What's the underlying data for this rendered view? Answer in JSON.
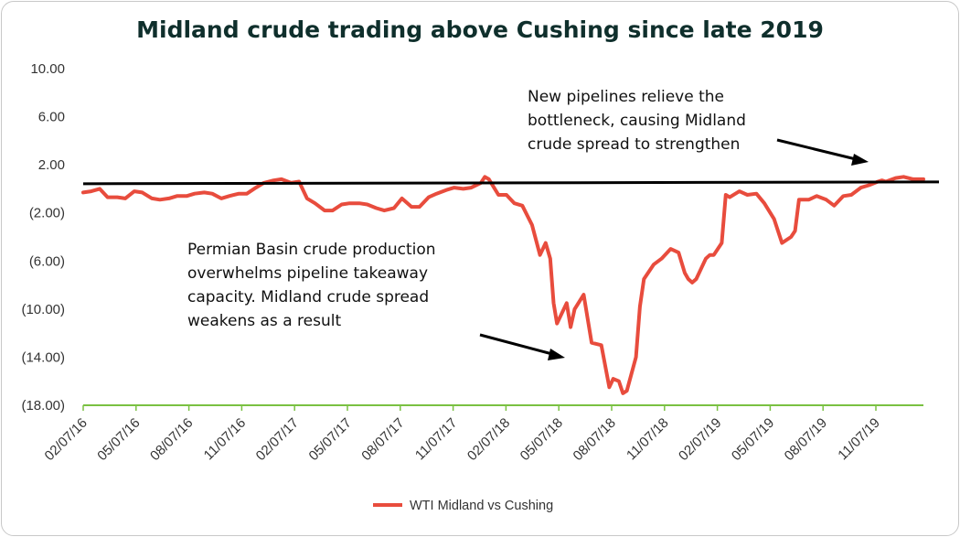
{
  "chart_data": {
    "type": "line",
    "title": "Midland crude trading above Cushing since late 2019",
    "xlabel": "",
    "ylabel": "",
    "ylim": [
      -18,
      10
    ],
    "y_ticks": [
      10,
      6,
      2,
      -2,
      -6,
      -10,
      -14,
      -18
    ],
    "y_tick_labels": [
      "10.00",
      "6.00",
      "2.00",
      "(2.00)",
      "(6.00)",
      "(10.00)",
      "(14.00)",
      "(18.00)"
    ],
    "x_tick_labels": [
      "02/07/16",
      "05/07/16",
      "08/07/16",
      "11/07/16",
      "02/07/17",
      "05/07/17",
      "08/07/17",
      "11/07/17",
      "02/07/18",
      "05/07/18",
      "08/07/18",
      "11/07/18",
      "02/07/19",
      "05/07/19",
      "08/07/19",
      "11/07/19"
    ],
    "x_range": [
      "2016-02-07",
      "2020-02-25"
    ],
    "grid": false,
    "legend_position": "bottom",
    "series": [
      {
        "name": "WTI Midland vs Cushing",
        "color": "#e84c3d",
        "points": [
          [
            "2016-02-07",
            -0.3
          ],
          [
            "2016-02-21",
            -0.2
          ],
          [
            "2016-03-07",
            0.0
          ],
          [
            "2016-03-21",
            -0.7
          ],
          [
            "2016-04-07",
            -0.7
          ],
          [
            "2016-04-21",
            -0.8
          ],
          [
            "2016-05-07",
            -0.2
          ],
          [
            "2016-05-21",
            -0.3
          ],
          [
            "2016-06-07",
            -0.8
          ],
          [
            "2016-06-21",
            -0.9
          ],
          [
            "2016-07-07",
            -0.8
          ],
          [
            "2016-07-21",
            -0.6
          ],
          [
            "2016-08-07",
            -0.6
          ],
          [
            "2016-08-21",
            -0.4
          ],
          [
            "2016-09-07",
            -0.3
          ],
          [
            "2016-09-21",
            -0.4
          ],
          [
            "2016-10-07",
            -0.8
          ],
          [
            "2016-10-21",
            -0.6
          ],
          [
            "2016-11-07",
            -0.4
          ],
          [
            "2016-11-21",
            -0.4
          ],
          [
            "2016-12-07",
            0.1
          ],
          [
            "2016-12-21",
            0.5
          ],
          [
            "2017-01-07",
            0.7
          ],
          [
            "2017-01-21",
            0.8
          ],
          [
            "2017-02-07",
            0.5
          ],
          [
            "2017-02-21",
            0.6
          ],
          [
            "2017-03-07",
            -0.8
          ],
          [
            "2017-03-21",
            -1.2
          ],
          [
            "2017-04-07",
            -1.8
          ],
          [
            "2017-04-21",
            -1.8
          ],
          [
            "2017-05-07",
            -1.3
          ],
          [
            "2017-05-21",
            -1.2
          ],
          [
            "2017-06-07",
            -1.2
          ],
          [
            "2017-06-21",
            -1.3
          ],
          [
            "2017-07-07",
            -1.6
          ],
          [
            "2017-07-21",
            -1.8
          ],
          [
            "2017-08-07",
            -1.6
          ],
          [
            "2017-08-21",
            -0.8
          ],
          [
            "2017-09-07",
            -1.5
          ],
          [
            "2017-09-21",
            -1.5
          ],
          [
            "2017-10-07",
            -0.7
          ],
          [
            "2017-10-21",
            -0.4
          ],
          [
            "2017-11-07",
            -0.1
          ],
          [
            "2017-11-21",
            0.1
          ],
          [
            "2017-12-07",
            0.0
          ],
          [
            "2017-12-21",
            0.1
          ],
          [
            "2018-01-07",
            0.5
          ],
          [
            "2018-01-14",
            1.0
          ],
          [
            "2018-01-21",
            0.8
          ],
          [
            "2018-02-07",
            -0.5
          ],
          [
            "2018-02-21",
            -0.5
          ],
          [
            "2018-03-07",
            -1.2
          ],
          [
            "2018-03-21",
            -1.4
          ],
          [
            "2018-04-07",
            -3.0
          ],
          [
            "2018-04-21",
            -5.5
          ],
          [
            "2018-05-01",
            -4.5
          ],
          [
            "2018-05-09",
            -5.8
          ],
          [
            "2018-05-15",
            -9.5
          ],
          [
            "2018-05-21",
            -11.2
          ],
          [
            "2018-06-07",
            -9.5
          ],
          [
            "2018-06-14",
            -11.5
          ],
          [
            "2018-06-21",
            -10.0
          ],
          [
            "2018-07-07",
            -8.8
          ],
          [
            "2018-07-21",
            -12.8
          ],
          [
            "2018-08-07",
            -13.0
          ],
          [
            "2018-08-21",
            -16.5
          ],
          [
            "2018-08-28",
            -15.8
          ],
          [
            "2018-09-07",
            -16.0
          ],
          [
            "2018-09-14",
            -17.0
          ],
          [
            "2018-09-21",
            -16.8
          ],
          [
            "2018-10-07",
            -14.0
          ],
          [
            "2018-10-14",
            -9.8
          ],
          [
            "2018-10-21",
            -7.5
          ],
          [
            "2018-11-07",
            -6.3
          ],
          [
            "2018-11-21",
            -5.8
          ],
          [
            "2018-12-07",
            -5.0
          ],
          [
            "2018-12-21",
            -5.3
          ],
          [
            "2019-01-01",
            -7.0
          ],
          [
            "2019-01-07",
            -7.5
          ],
          [
            "2019-01-14",
            -7.8
          ],
          [
            "2019-01-21",
            -7.5
          ],
          [
            "2019-02-07",
            -5.8
          ],
          [
            "2019-02-14",
            -5.5
          ],
          [
            "2019-02-21",
            -5.5
          ],
          [
            "2019-03-07",
            -4.5
          ],
          [
            "2019-03-14",
            -0.5
          ],
          [
            "2019-03-21",
            -0.7
          ],
          [
            "2019-04-07",
            -0.2
          ],
          [
            "2019-04-21",
            -0.5
          ],
          [
            "2019-05-07",
            -0.4
          ],
          [
            "2019-05-21",
            -1.2
          ],
          [
            "2019-06-07",
            -2.5
          ],
          [
            "2019-06-21",
            -4.5
          ],
          [
            "2019-07-07",
            -4.0
          ],
          [
            "2019-07-14",
            -3.5
          ],
          [
            "2019-07-21",
            -0.9
          ],
          [
            "2019-08-07",
            -0.9
          ],
          [
            "2019-08-21",
            -0.6
          ],
          [
            "2019-09-07",
            -0.9
          ],
          [
            "2019-09-21",
            -1.4
          ],
          [
            "2019-10-07",
            -0.6
          ],
          [
            "2019-10-21",
            -0.5
          ],
          [
            "2019-11-07",
            0.1
          ],
          [
            "2019-11-21",
            0.3
          ],
          [
            "2019-12-07",
            0.6
          ],
          [
            "2019-12-14",
            0.7
          ],
          [
            "2019-12-21",
            0.6
          ],
          [
            "2020-01-07",
            0.9
          ],
          [
            "2020-01-21",
            1.0
          ],
          [
            "2020-02-07",
            0.8
          ],
          [
            "2020-02-25",
            0.8
          ]
        ]
      }
    ],
    "reference_line": {
      "y": 0.5,
      "color": "#000000"
    },
    "annotations": [
      {
        "lines": [
          "New pipelines relieve the",
          "bottleneck, causing Midland",
          "crude spread to strengthen"
        ]
      },
      {
        "lines": [
          "Permian Basin crude production",
          "overwhelms pipeline takeaway",
          "capacity. Midland crude spread",
          "weakens as a result"
        ]
      }
    ],
    "axis_color": "#7ac142"
  }
}
